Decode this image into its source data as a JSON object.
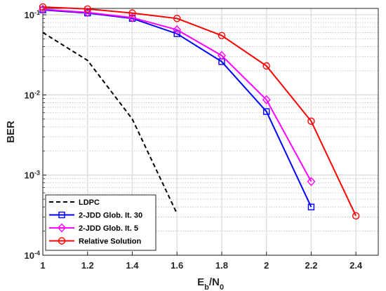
{
  "chart_data": {
    "type": "line",
    "xlabel": "E_b/N_0",
    "ylabel": "BER",
    "x_scale": "linear",
    "y_scale": "log",
    "xlim": [
      1,
      2.5
    ],
    "ylim": [
      0.0001,
      0.12
    ],
    "x_ticks": [
      "1",
      "1.2",
      "1.4",
      "1.6",
      "1.8",
      "2",
      "2.2",
      "2.4"
    ],
    "y_ticks": [
      {
        "base": "10",
        "exp": "-1"
      },
      {
        "base": "10",
        "exp": "-2"
      },
      {
        "base": "10",
        "exp": "-3"
      },
      {
        "base": "10",
        "exp": "-4"
      }
    ],
    "grid": true,
    "legend_position": "bottom-left",
    "series": [
      {
        "name": "LDPC",
        "color": "#000000",
        "dash": "dashed",
        "marker": "none",
        "x": [
          1,
          1.2,
          1.4,
          1.6
        ],
        "y": [
          0.06,
          0.027,
          0.005,
          0.00033
        ]
      },
      {
        "name": "2-JDD Glob. It. 30",
        "color": "#0000ff",
        "dash": "solid",
        "marker": "square",
        "x": [
          1,
          1.2,
          1.4,
          1.6,
          1.8,
          2,
          2.2
        ],
        "y": [
          0.115,
          0.105,
          0.09,
          0.058,
          0.026,
          0.0062,
          0.0004
        ]
      },
      {
        "name": "2-JDD Glob. It. 5",
        "color": "#ff00ff",
        "dash": "solid",
        "marker": "diamond",
        "x": [
          1,
          1.2,
          1.4,
          1.6,
          1.8,
          2,
          2.2
        ],
        "y": [
          0.117,
          0.107,
          0.092,
          0.065,
          0.031,
          0.0087,
          0.00083
        ]
      },
      {
        "name": "Relative Solution",
        "color": "#ff0000",
        "dash": "solid",
        "marker": "circle",
        "x": [
          1,
          1.2,
          1.4,
          1.6,
          1.8,
          2,
          2.2,
          2.4
        ],
        "y": [
          0.125,
          0.118,
          0.105,
          0.09,
          0.055,
          0.023,
          0.0047,
          0.00031
        ]
      }
    ]
  }
}
